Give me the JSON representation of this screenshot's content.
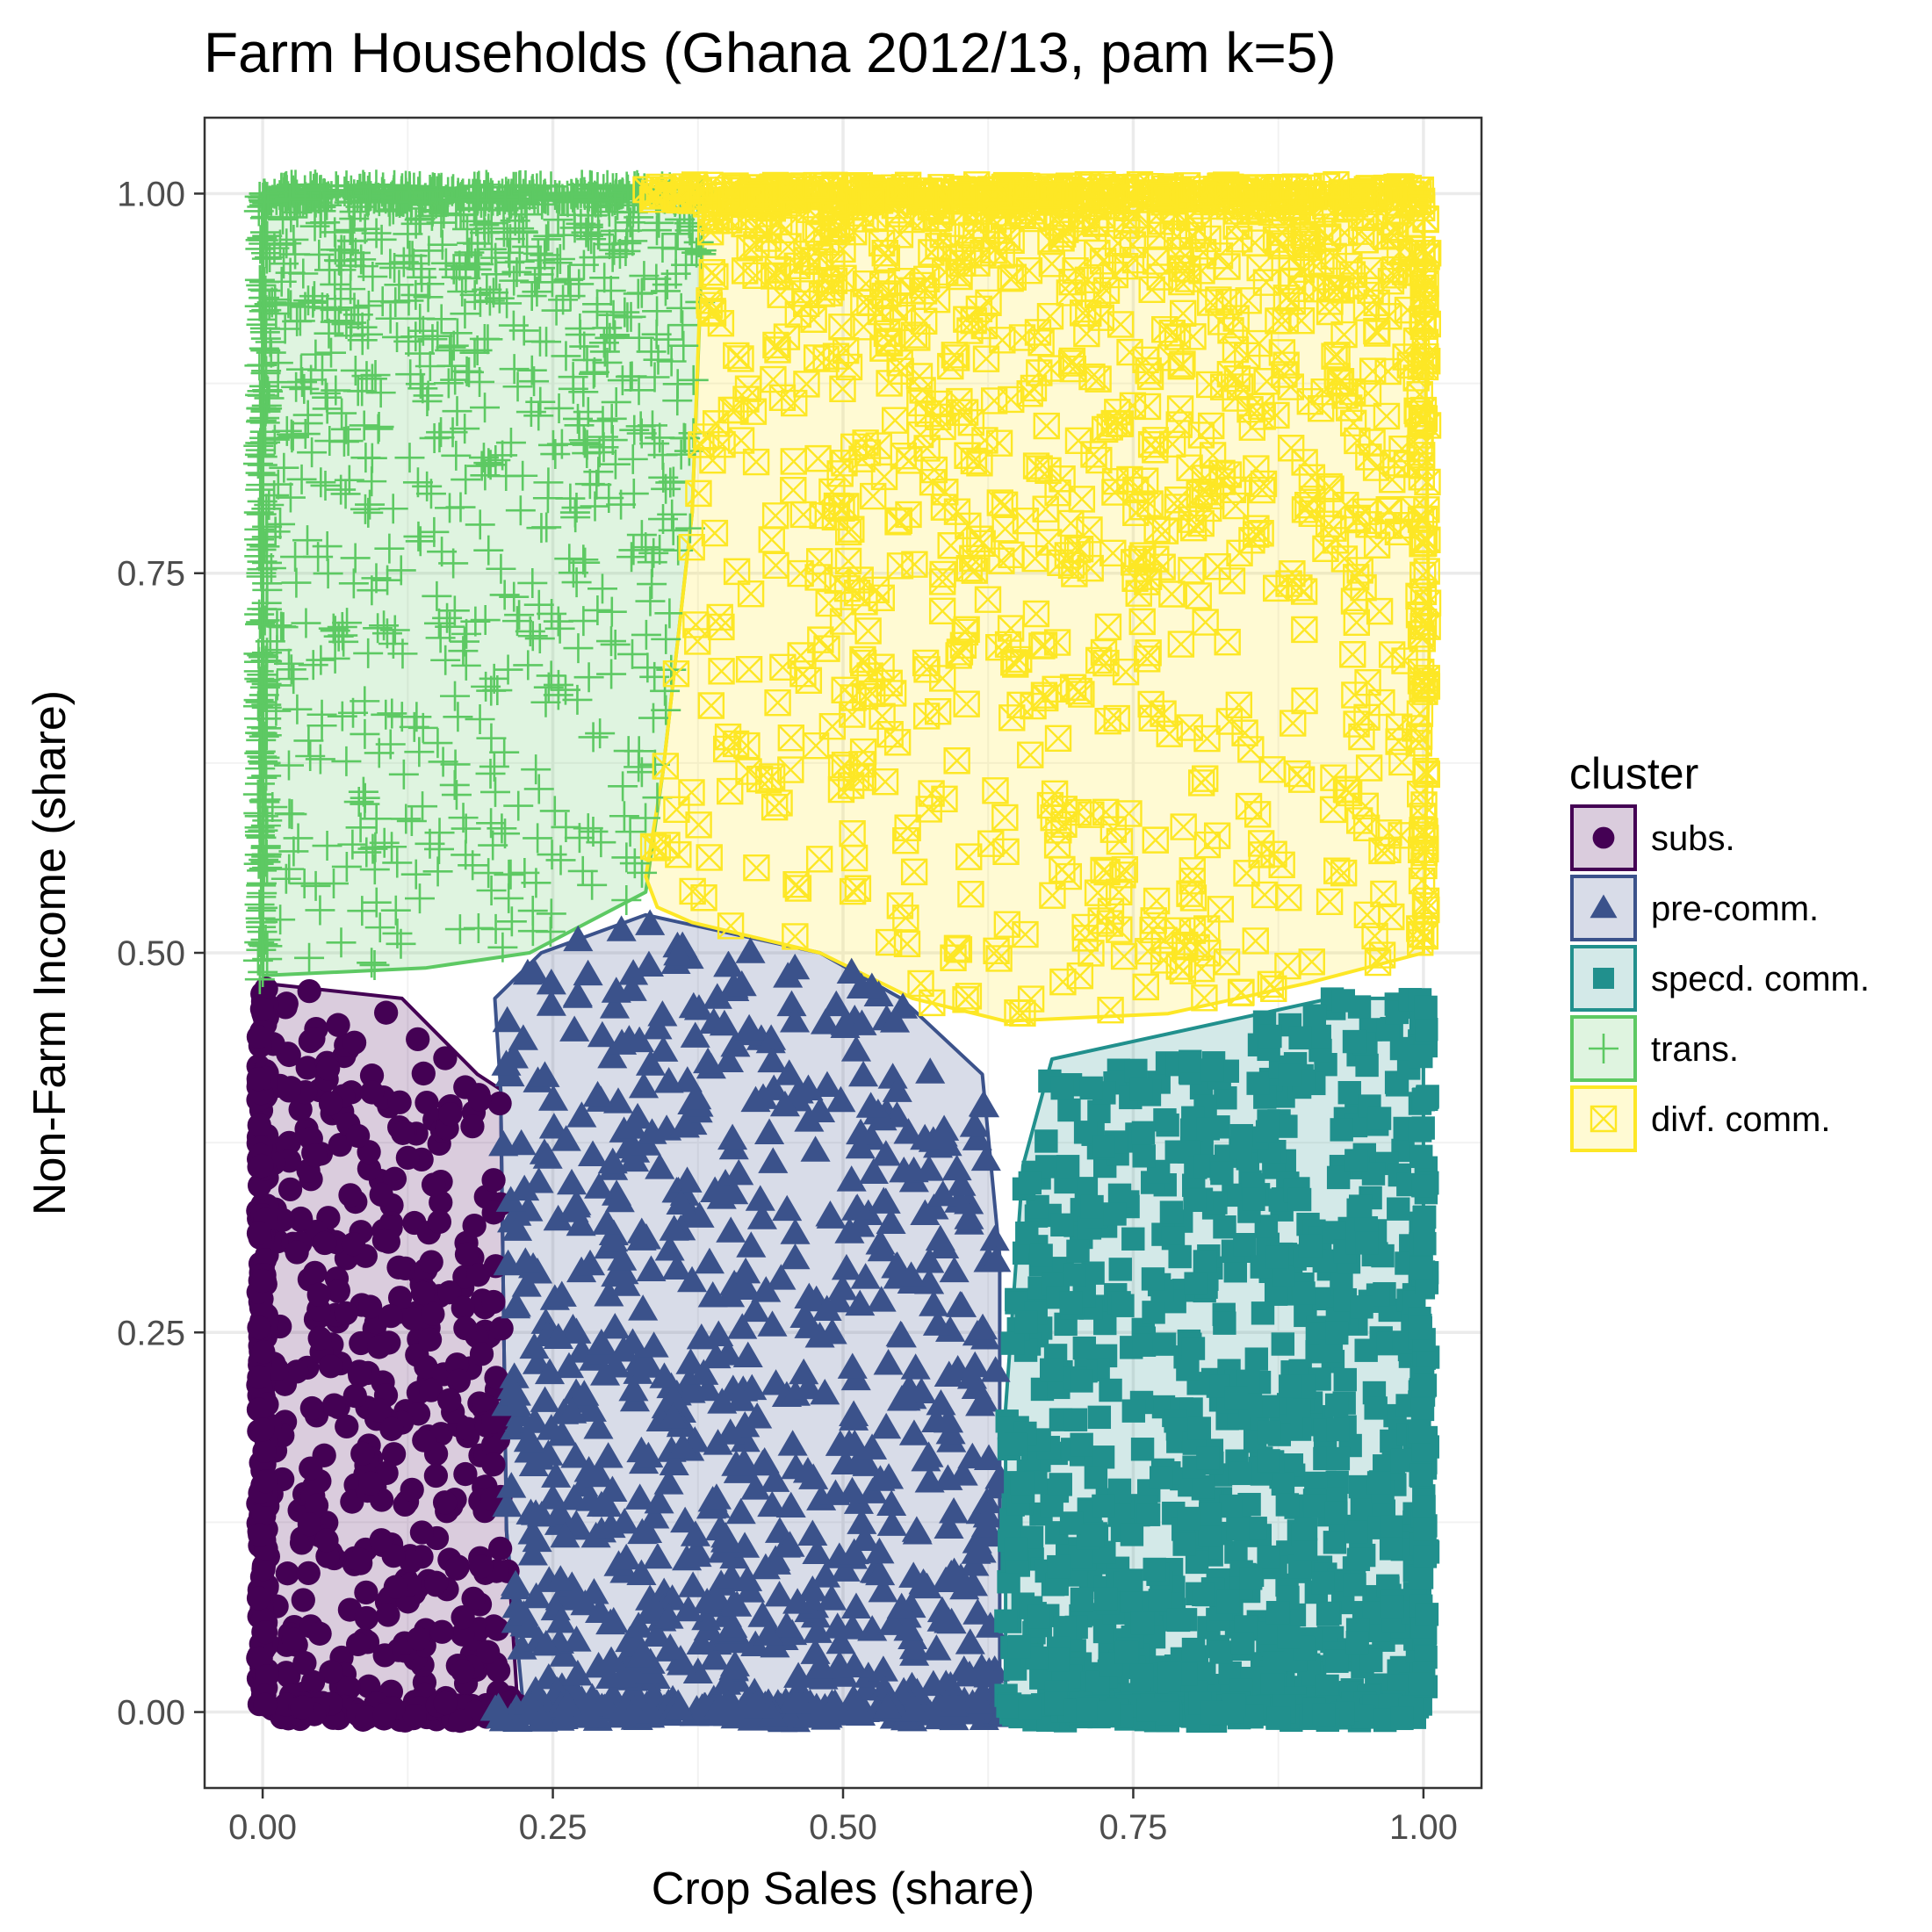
{
  "chart_data": {
    "type": "scatter",
    "title": "Farm Households (Ghana 2012/13, pam k=5)",
    "xlabel": "Crop Sales (share)",
    "ylabel": "Non-Farm Income (share)",
    "xlim": [
      -0.05,
      1.05
    ],
    "ylim": [
      -0.05,
      1.05
    ],
    "x_ticks": [
      "0.00",
      "0.25",
      "0.50",
      "0.75",
      "1.00"
    ],
    "y_ticks": [
      "0.00",
      "0.25",
      "0.50",
      "0.75",
      "1.00"
    ],
    "x_tick_values": [
      0,
      0.25,
      0.5,
      0.75,
      1.0
    ],
    "y_tick_values": [
      0,
      0.25,
      0.5,
      0.75,
      1.0
    ],
    "grid": true,
    "legend": {
      "title": "cluster",
      "position": "right"
    },
    "series": [
      {
        "name": "subs.",
        "marker": "circle",
        "color": "#440154",
        "x_range": [
          0.0,
          0.22
        ],
        "y_range": [
          0.0,
          0.48
        ],
        "hull": [
          [
            0.0,
            0.0
          ],
          [
            0.22,
            0.0
          ],
          [
            0.21,
            0.12
          ],
          [
            0.205,
            0.41
          ],
          [
            0.185,
            0.42
          ],
          [
            0.12,
            0.47
          ],
          [
            0.0,
            0.48
          ]
        ]
      },
      {
        "name": "pre-comm.",
        "marker": "triangle",
        "color": "#3b528b",
        "x_range": [
          0.2,
          0.64
        ],
        "y_range": [
          0.0,
          0.525
        ],
        "hull": [
          [
            0.225,
            0.0
          ],
          [
            0.635,
            0.0
          ],
          [
            0.635,
            0.3
          ],
          [
            0.62,
            0.42
          ],
          [
            0.55,
            0.47
          ],
          [
            0.48,
            0.5
          ],
          [
            0.33,
            0.525
          ],
          [
            0.24,
            0.5
          ],
          [
            0.2,
            0.47
          ],
          [
            0.205,
            0.41
          ],
          [
            0.21,
            0.12
          ]
        ]
      },
      {
        "name": "specd. comm.",
        "marker": "square",
        "color": "#21908d",
        "x_range": [
          0.64,
          1.0
        ],
        "y_range": [
          0.0,
          0.47
        ],
        "hull": [
          [
            0.64,
            0.0
          ],
          [
            1.0,
            0.0
          ],
          [
            1.0,
            0.47
          ],
          [
            0.92,
            0.47
          ],
          [
            0.68,
            0.43
          ],
          [
            0.655,
            0.36
          ],
          [
            0.64,
            0.2
          ]
        ]
      },
      {
        "name": "trans.",
        "marker": "plus",
        "color": "#5dc963",
        "x_range": [
          0.0,
          0.38
        ],
        "y_range": [
          0.48,
          1.0
        ],
        "hull": [
          [
            0.0,
            0.485
          ],
          [
            0.14,
            0.49
          ],
          [
            0.23,
            0.5
          ],
          [
            0.33,
            0.54
          ],
          [
            0.345,
            0.62
          ],
          [
            0.37,
            0.79
          ],
          [
            0.38,
            0.99
          ],
          [
            0.36,
            1.0
          ],
          [
            0.0,
            1.0
          ]
        ]
      },
      {
        "name": "divf. comm.",
        "marker": "square-cross",
        "color": "#fde725",
        "x_range": [
          0.33,
          1.0
        ],
        "y_range": [
          0.45,
          1.0
        ],
        "hull": [
          [
            0.34,
            0.53
          ],
          [
            0.37,
            0.52
          ],
          [
            0.48,
            0.5
          ],
          [
            0.56,
            0.47
          ],
          [
            0.64,
            0.455
          ],
          [
            0.78,
            0.46
          ],
          [
            0.9,
            0.48
          ],
          [
            1.0,
            0.5
          ],
          [
            1.005,
            0.7
          ],
          [
            1.0,
            1.0
          ],
          [
            0.38,
            1.0
          ],
          [
            0.37,
            0.79
          ],
          [
            0.345,
            0.62
          ],
          [
            0.33,
            0.55
          ]
        ]
      }
    ]
  }
}
